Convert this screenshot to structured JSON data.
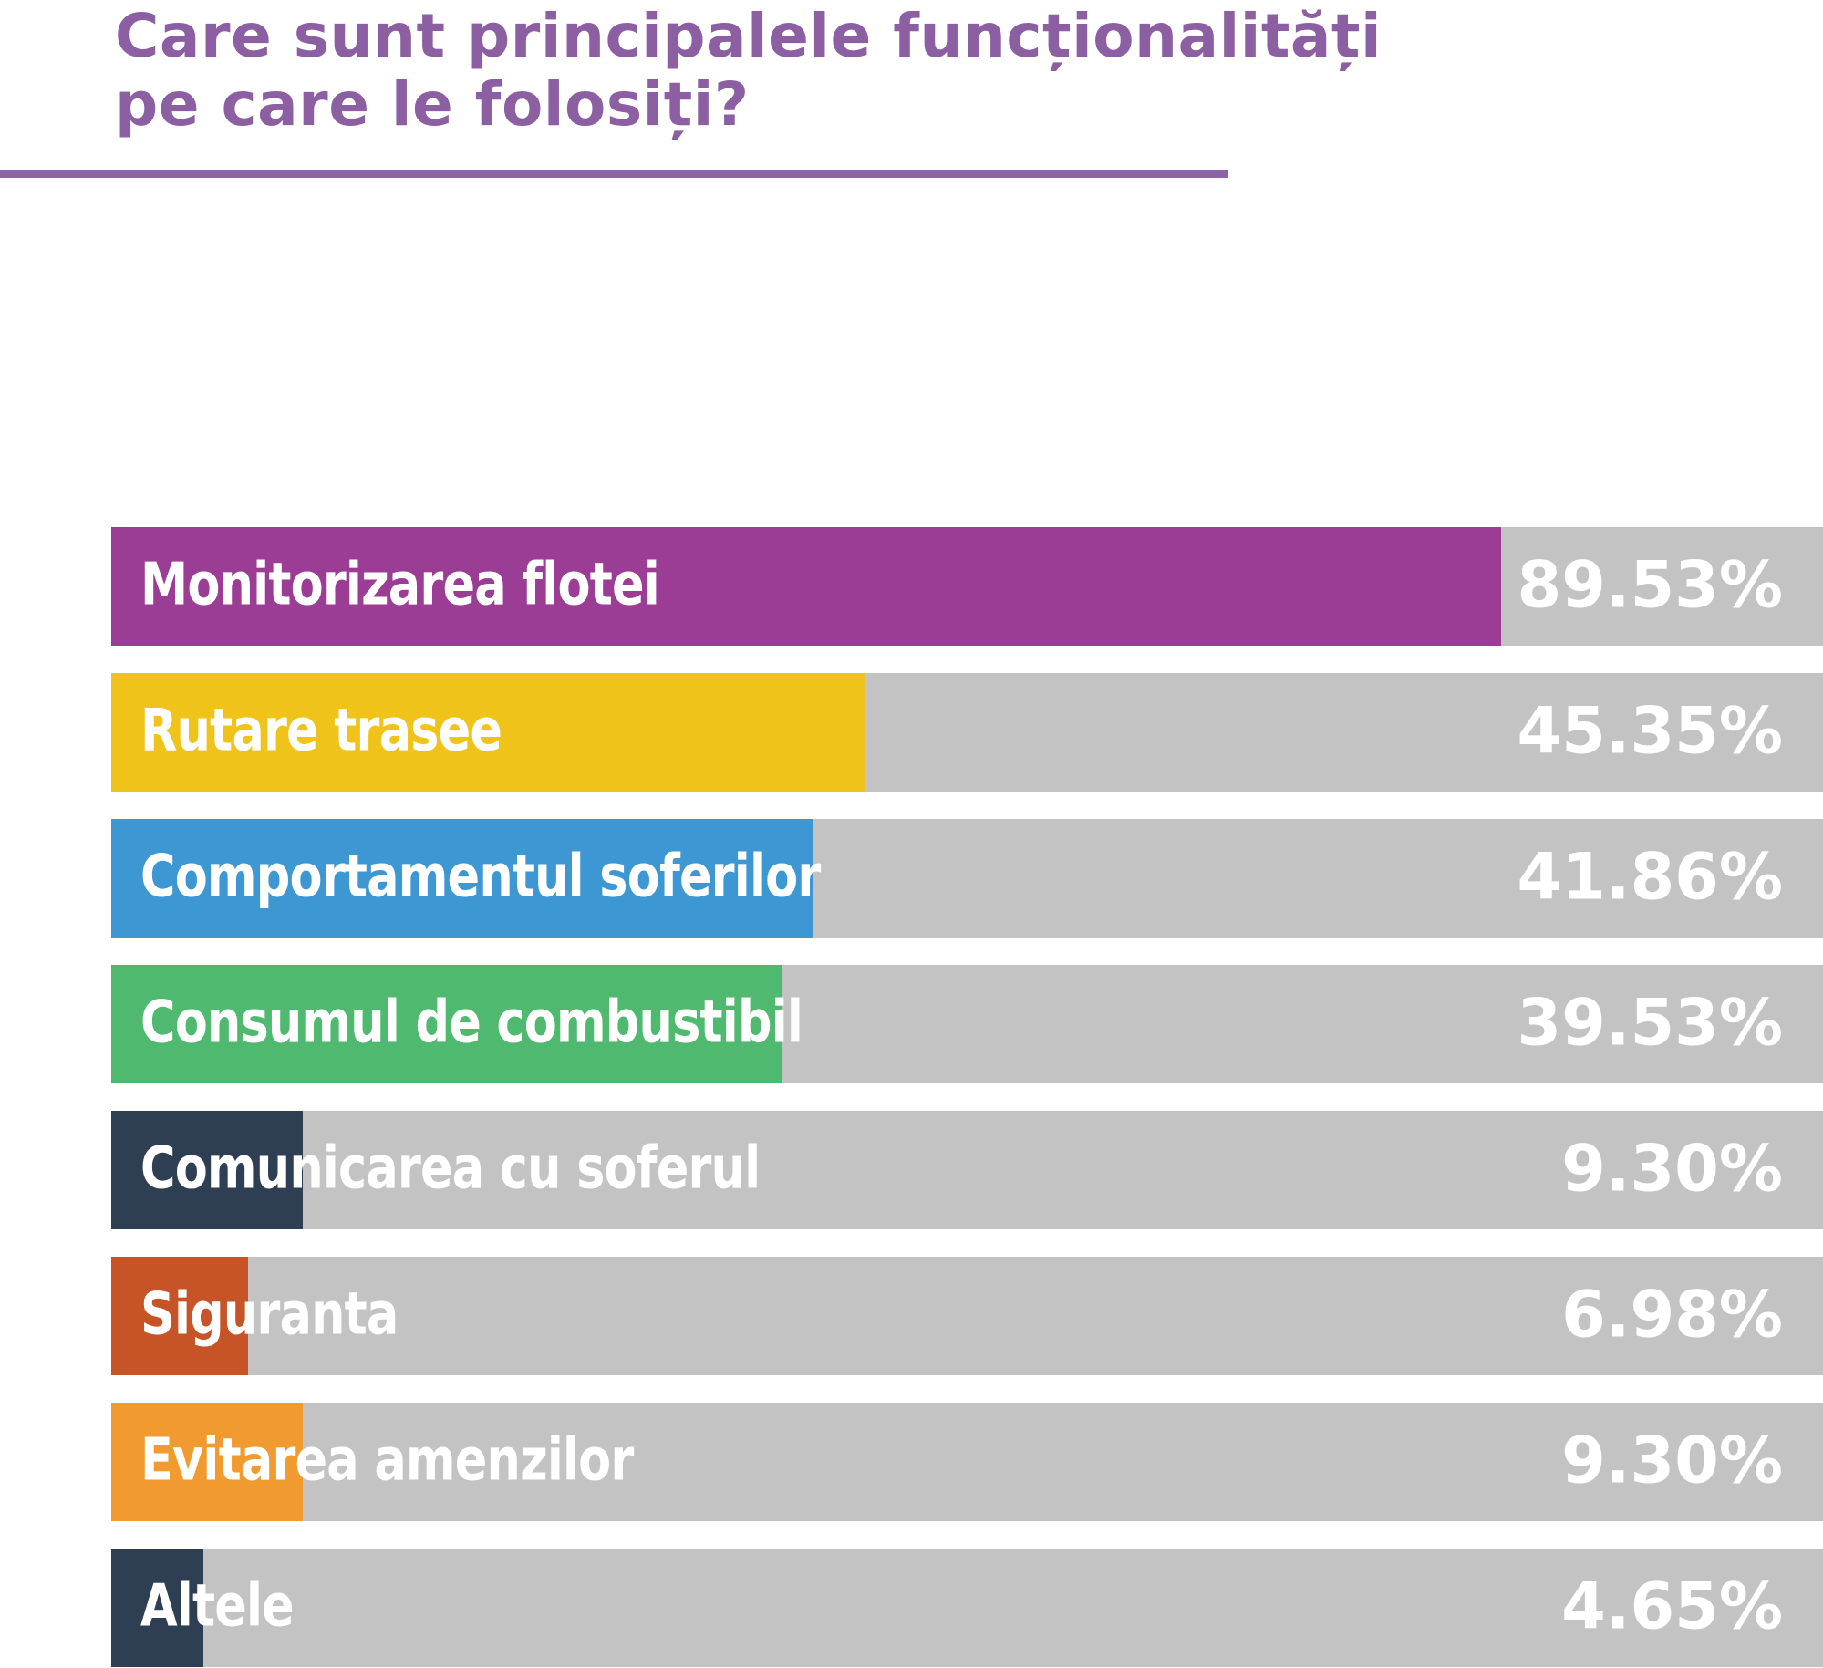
{
  "title": {
    "text": "Care sunt principalele funcționalități pe care le folosiți?",
    "color": "#8B5FA1",
    "underline_color": "#8A63A9"
  },
  "colors": {
    "track_gray": "#C3C3C3",
    "label_white": "#ffffff",
    "background": "#ffffff"
  },
  "chart_data": {
    "type": "bar",
    "orientation": "horizontal",
    "title": "Care sunt principalele funcționalități pe care le folosiți?",
    "categories": [
      "Monitorizarea flotei",
      "Rutare trasee",
      "Comportamentul soferilor",
      "Consumul de combustibil",
      "Comunicarea cu soferul",
      "Siguranta",
      "Evitarea amenzilor",
      "Altele"
    ],
    "values": [
      89.53,
      45.35,
      41.86,
      39.53,
      9.3,
      6.98,
      9.3,
      4.65
    ],
    "value_labels": [
      "89.53%",
      "45.35%",
      "41.86%",
      "39.53%",
      "9.30%",
      "6.98%",
      "9.30%",
      "4.65%"
    ],
    "bar_colors": [
      "#9B3D94",
      "#EFC31A",
      "#3D97D3",
      "#4FBA6F",
      "#2E3F54",
      "#C65426",
      "#F09A2F",
      "#2E3F54"
    ],
    "xlabel": "",
    "ylabel": "",
    "xlim": [
      0,
      100
    ],
    "grid": false,
    "legend": "none",
    "track_background": "#C3C3C3",
    "value_label_position": "right-inside-track"
  },
  "rows": [
    {
      "label": "Monitorizarea flotei",
      "value_label": "89.53%",
      "color": "#9B3D94",
      "fill_pct": 81.2
    },
    {
      "label": "Rutare trasee",
      "value_label": "45.35%",
      "color": "#EFC31A",
      "fill_pct": 44.0
    },
    {
      "label": "Comportamentul soferilor",
      "value_label": "41.86%",
      "color": "#3D97D3",
      "fill_pct": 41.0
    },
    {
      "label": "Consumul de combustibil",
      "value_label": "39.53%",
      "color": "#4FBA6F",
      "fill_pct": 39.2
    },
    {
      "label": "Comunicarea cu soferul",
      "value_label": "9.30%",
      "color": "#2E3F54",
      "fill_pct": 11.2
    },
    {
      "label": "Siguranta",
      "value_label": "6.98%",
      "color": "#C65426",
      "fill_pct": 8.0
    },
    {
      "label": "Evitarea amenzilor",
      "value_label": "9.30%",
      "color": "#F09A2F",
      "fill_pct": 11.2
    },
    {
      "label": "Altele",
      "value_label": "4.65%",
      "color": "#2E3F54",
      "fill_pct": 5.4
    }
  ]
}
